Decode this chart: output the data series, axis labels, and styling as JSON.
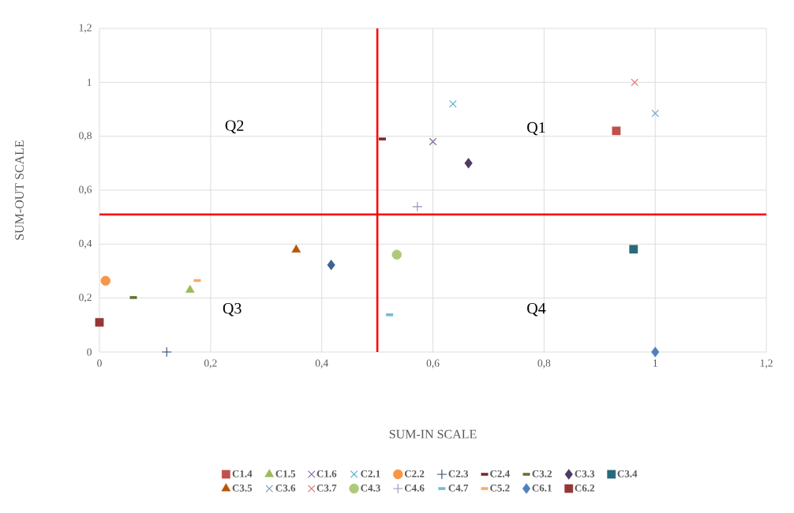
{
  "chart_data": {
    "type": "scatter",
    "xlabel": "SUM-IN SCALE",
    "ylabel": "SUM-OUT SCALE",
    "xlim": [
      0,
      1.2
    ],
    "ylim": [
      0,
      1.2
    ],
    "xticks": [
      0,
      {
        "value": 0.2,
        "label": "0,2"
      },
      {
        "value": 0.4,
        "label": "0,4"
      },
      {
        "value": 0.6,
        "label": "0,6"
      },
      {
        "value": 0.8,
        "label": "0,8"
      },
      1,
      {
        "value": 1.2,
        "label": "1,2"
      }
    ],
    "yticks": [
      0,
      {
        "value": 0.2,
        "label": "0,2"
      },
      {
        "value": 0.4,
        "label": "0,4"
      },
      {
        "value": 0.6,
        "label": "0,6"
      },
      {
        "value": 0.8,
        "label": "0,8"
      },
      1,
      {
        "value": 1.2,
        "label": "1,2"
      }
    ],
    "grid": true,
    "legend": "bottom",
    "series": [
      {
        "name": "C1.4",
        "color": "#c0504d",
        "marker": "square",
        "x": [
          0.93
        ],
        "values": [
          0.82
        ]
      },
      {
        "name": "C1.5",
        "color": "#9bbb59",
        "marker": "triangle",
        "x": [
          0.163
        ],
        "values": [
          0.23
        ]
      },
      {
        "name": "C1.6",
        "color": "#8064a2",
        "marker": "cross",
        "x": [
          0.6
        ],
        "values": [
          0.78
        ]
      },
      {
        "name": "C2.1",
        "color": "#4bacc6",
        "marker": "cross",
        "x": [
          0.636
        ],
        "values": [
          0.92
        ]
      },
      {
        "name": "C2.2",
        "color": "#f79646",
        "marker": "circle",
        "x": [
          0.011
        ],
        "values": [
          0.264
        ]
      },
      {
        "name": "C2.3",
        "color": "#2c4d75",
        "marker": "plus",
        "x": [
          0.121
        ],
        "values": [
          0
        ]
      },
      {
        "name": "C2.4",
        "color": "#772c2a",
        "x": [
          0.509
        ],
        "values": [
          0.79
        ]
      },
      {
        "name": "C3.2",
        "color": "#5f7530",
        "x": [
          0.061
        ],
        "values": [
          0.202
        ]
      },
      {
        "name": "C3.3",
        "color": "#4d3b62",
        "marker": "diamond",
        "x": [
          0.664
        ],
        "values": [
          0.7
        ]
      },
      {
        "name": "C3.4",
        "color": "#276a7c",
        "marker": "square",
        "x": [
          0.961
        ],
        "values": [
          0.381
        ]
      },
      {
        "name": "C3.5",
        "color": "#b65708",
        "marker": "triangle",
        "x": [
          0.354
        ],
        "values": [
          0.379
        ]
      },
      {
        "name": "C3.6",
        "color": "#729aca",
        "marker": "cross",
        "x": [
          1.0
        ],
        "values": [
          0.885
        ]
      },
      {
        "name": "C3.7",
        "color": "#d9706d",
        "marker": "cross",
        "x": [
          0.963
        ],
        "values": [
          1.0
        ]
      },
      {
        "name": "C4.3",
        "color": "#afc97a",
        "marker": "circle",
        "x": [
          0.535
        ],
        "values": [
          0.361
        ]
      },
      {
        "name": "C4.6",
        "color": "#a18bbd",
        "marker": "plus",
        "x": [
          0.572
        ],
        "values": [
          0.539
        ]
      },
      {
        "name": "C4.7",
        "color": "#6fbdd1",
        "x": [
          0.522
        ],
        "values": [
          0.138
        ]
      },
      {
        "name": "C5.2",
        "color": "#f9ab6b",
        "x": [
          0.176
        ],
        "values": [
          0.265
        ]
      },
      {
        "name": "C6.1",
        "color": "#4f81bd",
        "marker": "diamond",
        "x": [
          1.0
        ],
        "values": [
          0
        ]
      },
      {
        "name": "C6.2",
        "color": "#953735",
        "marker": "square",
        "x": [
          0
        ],
        "values": [
          0.11
        ]
      },
      {
        "color": "#3a6496",
        "marker": "diamond",
        "x": [
          0.417
        ],
        "values": [
          0.323
        ]
      }
    ],
    "ref_lines": [
      {
        "axis": "x",
        "value": 0.5,
        "color": "#ff0000"
      },
      {
        "axis": "y",
        "value": 0.51,
        "color": "#ff0000"
      }
    ],
    "annotations": [
      "Q1",
      "Q2",
      "Q3",
      "Q4"
    ]
  }
}
